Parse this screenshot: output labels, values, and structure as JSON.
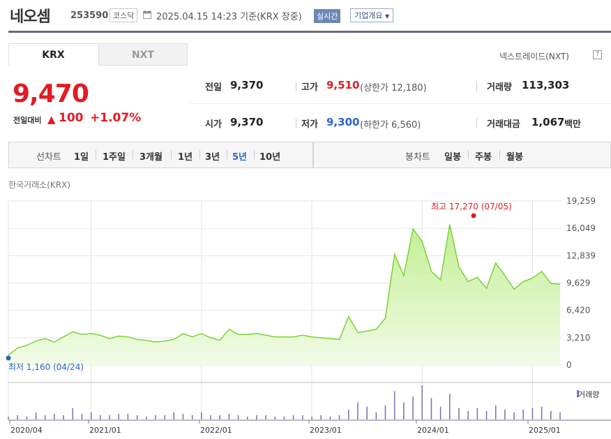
{
  "header": {
    "name": "네오셈",
    "code": "253590",
    "market": "코스닥",
    "time": "2025.04.15 14:23",
    "basis": "기준(KRX 장중)",
    "realtime_badge": "실시간",
    "company_button": "기업개요"
  },
  "tabs": [
    {
      "label": "KRX"
    },
    {
      "label": "NXT"
    }
  ],
  "nextrade_link": "넥스트레이드(NXT)",
  "help_icon": "?",
  "price": {
    "current": "9,470",
    "change_label": "전일대비",
    "change_value": "100",
    "change_pct": "+1.07%"
  },
  "stats": {
    "prev": {
      "label": "전일",
      "value": "9,370"
    },
    "high": {
      "label": "고가",
      "value": "9,510",
      "note": "(상한가 12,180)"
    },
    "volume": {
      "label": "거래량",
      "value": "113,303"
    },
    "open": {
      "label": "시가",
      "value": "9,370"
    },
    "low": {
      "label": "저가",
      "value": "9,300",
      "note": "(하한가 6,560)"
    },
    "amount": {
      "label": "거래대금",
      "value": "1,067",
      "unit": "백만"
    }
  },
  "periods": {
    "line_label": "선차트",
    "line_items": [
      "1일",
      "1주일",
      "3개월",
      "1년",
      "3년",
      "5년",
      "10년"
    ],
    "selected": "5년",
    "candle_label": "봉차트",
    "candle_items": [
      "일봉",
      "주봉",
      "월봉"
    ]
  },
  "source": "한국거래소(KRX)",
  "colors": {
    "up": "#e11b23",
    "down": "#2864c8",
    "line": "#7cd13a",
    "fill": "#d7f5b8",
    "volume": "#8672b6"
  },
  "chart_data": {
    "type": "area",
    "y_ticks": [
      "19,259",
      "16,049",
      "12,839",
      "9,629",
      "6,420",
      "3,210",
      "0"
    ],
    "ylim": [
      0,
      19259
    ],
    "x_ticks": [
      "2020/04",
      "2021/01",
      "2022/01",
      "2023/01",
      "2024/01",
      "2025/01"
    ],
    "max_annotation": "최고 17,270 (07/05)",
    "min_annotation": "최저 1,160 (04/24)",
    "volume_label": "거래량",
    "series": [
      {
        "x": [
          "2020-04",
          "2020-05",
          "2020-06",
          "2020-07",
          "2020-08",
          "2020-09",
          "2020-10",
          "2020-11",
          "2020-12",
          "2021-01",
          "2021-02",
          "2021-03",
          "2021-04",
          "2021-05",
          "2021-06",
          "2021-07",
          "2021-08",
          "2021-09",
          "2021-10",
          "2021-11",
          "2021-12",
          "2022-01",
          "2022-02",
          "2022-03",
          "2022-04",
          "2022-05",
          "2022-06",
          "2022-07",
          "2022-08",
          "2022-09",
          "2022-10",
          "2022-11",
          "2022-12",
          "2023-01",
          "2023-02",
          "2023-03",
          "2023-04",
          "2023-05",
          "2023-06",
          "2023-07",
          "2023-08",
          "2023-09",
          "2023-10",
          "2023-11",
          "2023-12",
          "2024-01",
          "2024-02",
          "2024-03",
          "2024-04",
          "2024-05",
          "2024-06",
          "2024-07",
          "2024-08",
          "2024-09",
          "2024-10",
          "2024-11",
          "2024-12",
          "2025-01",
          "2025-02",
          "2025-03",
          "2025-04"
        ],
        "y": [
          1160,
          2000,
          2300,
          2800,
          3100,
          2700,
          3300,
          3900,
          3600,
          3700,
          3500,
          3100,
          3400,
          3300,
          3000,
          2900,
          2700,
          2800,
          3000,
          3700,
          3300,
          3700,
          3200,
          2900,
          4200,
          3600,
          3600,
          3700,
          3500,
          3300,
          3300,
          3300,
          3500,
          3300,
          3200,
          3100,
          3000,
          5700,
          3800,
          4000,
          4200,
          5500,
          13000,
          10500,
          16000,
          14500,
          11000,
          10000,
          16500,
          11500,
          9800,
          10300,
          9000,
          12000,
          10500,
          8900,
          9800,
          10200,
          11000,
          9600,
          9470
        ]
      }
    ],
    "volume": [
      2,
      3,
      2,
      5,
      3,
      4,
      3,
      8,
      4,
      5,
      3,
      3,
      4,
      4,
      3,
      2,
      3,
      3,
      5,
      4,
      3,
      5,
      3,
      3,
      4,
      3,
      2,
      3,
      3,
      2,
      2,
      3,
      3,
      2,
      3,
      2,
      3,
      7,
      12,
      9,
      5,
      10,
      20,
      12,
      16,
      24,
      15,
      9,
      18,
      8,
      6,
      8,
      6,
      10,
      7,
      5,
      7,
      8,
      9,
      6,
      5
    ]
  }
}
